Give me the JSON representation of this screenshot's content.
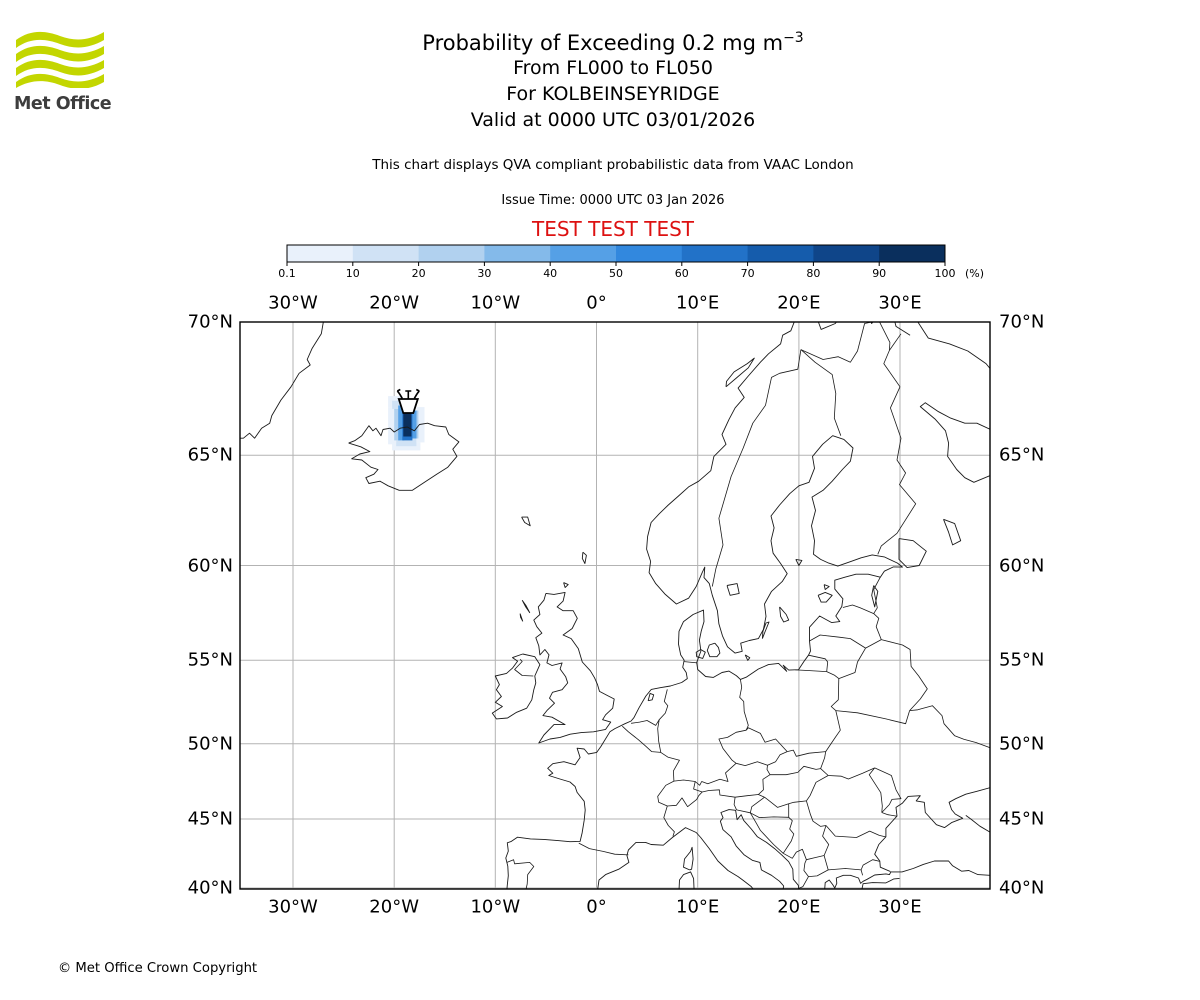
{
  "branding": {
    "logo_text": "Met Office",
    "logo_green": "#c3d600",
    "logo_text_color": "#3d3d3d"
  },
  "header": {
    "title_prefix": "Probability of Exceeding 0.2 mg m",
    "title_exponent": "−3",
    "subtitle_flight_levels": "From FL000 to FL050",
    "subtitle_volcano": "For KOLBEINSEYRIDGE",
    "subtitle_valid": "Valid at 0000 UTC 03/01/2026",
    "description": "This chart displays QVA compliant probabilistic data from VAAC London",
    "issue_time": "Issue Time: 0000 UTC 03 Jan 2026",
    "test_banner": "TEST TEST TEST",
    "test_banner_color": "#dd1111"
  },
  "footer": {
    "copyright": "© Met Office Crown Copyright"
  },
  "chart_data": {
    "type": "map",
    "projection": "mercator",
    "extent": {
      "lon_min": -35.2,
      "lon_max": 38.95,
      "lat_min": 39.8,
      "lat_max": 70.4
    },
    "grid": {
      "lon_ticks_deg": [
        -30,
        -20,
        -10,
        0,
        10,
        20,
        30
      ],
      "lon_tick_labels": [
        "30°W",
        "20°W",
        "10°W",
        "0°",
        "10°E",
        "20°E",
        "30°E"
      ],
      "lat_ticks_deg": [
        70,
        65,
        60,
        55,
        50,
        45,
        40
      ],
      "lat_tick_labels": [
        "70°N",
        "65°N",
        "60°N",
        "55°N",
        "50°N",
        "45°N",
        "40°N"
      ],
      "grid_color": "#b3b3b3",
      "coast_color": "#1a1a1a"
    },
    "colorbar": {
      "unit": "(%)",
      "tick_labels": [
        "0.1",
        "10",
        "20",
        "30",
        "40",
        "50",
        "60",
        "70",
        "80",
        "90",
        "100"
      ],
      "colors": [
        "#e9f1fb",
        "#d0e2f5",
        "#b1d1ef",
        "#84baea",
        "#55a0e6",
        "#3288de",
        "#2272c8",
        "#155cac",
        "#0f4589",
        "#0a2f5d"
      ]
    },
    "volcano": {
      "name": "KOLBEINSEYRIDGE",
      "lon": -18.6,
      "lat": 66.7,
      "symbol": "volcano-eruption-marker"
    },
    "plume_cells": [
      {
        "lon_min": -20.6,
        "lat_min": 66.93,
        "lon_max": -19.2,
        "lat_max": 67.35,
        "level": 0
      },
      {
        "lon_min": -20.6,
        "lat_min": 65.45,
        "lon_max": -19.8,
        "lat_max": 66.93,
        "level": 0
      },
      {
        "lon_min": -17.8,
        "lat_min": 65.53,
        "lon_max": -17.0,
        "lat_max": 66.93,
        "level": 0
      },
      {
        "lon_min": -20.2,
        "lat_min": 65.2,
        "lon_max": -17.4,
        "lat_max": 65.53,
        "level": 0
      },
      {
        "lon_min": -20.2,
        "lat_min": 66.86,
        "lon_max": -19.2,
        "lat_max": 67.17,
        "level": 1
      },
      {
        "lon_min": -19.8,
        "lat_min": 65.37,
        "lon_max": -17.8,
        "lat_max": 65.69,
        "level": 1
      },
      {
        "lon_min": -20.0,
        "lat_min": 65.61,
        "lon_max": -19.4,
        "lat_max": 66.86,
        "level": 2
      },
      {
        "lon_min": -18.0,
        "lat_min": 65.69,
        "lon_max": -17.6,
        "lat_max": 66.8,
        "level": 2
      },
      {
        "lon_min": -19.6,
        "lat_min": 65.61,
        "lon_max": -19.0,
        "lat_max": 66.99,
        "level": 4
      },
      {
        "lon_min": -18.4,
        "lat_min": 65.69,
        "lon_max": -17.8,
        "lat_max": 66.8,
        "level": 4
      },
      {
        "lon_min": -19.2,
        "lat_min": 65.61,
        "lon_max": -18.2,
        "lat_max": 66.93,
        "level": 6
      },
      {
        "lon_min": -19.1,
        "lat_min": 65.77,
        "lon_max": -18.3,
        "lat_max": 66.8,
        "level": 9
      }
    ]
  }
}
